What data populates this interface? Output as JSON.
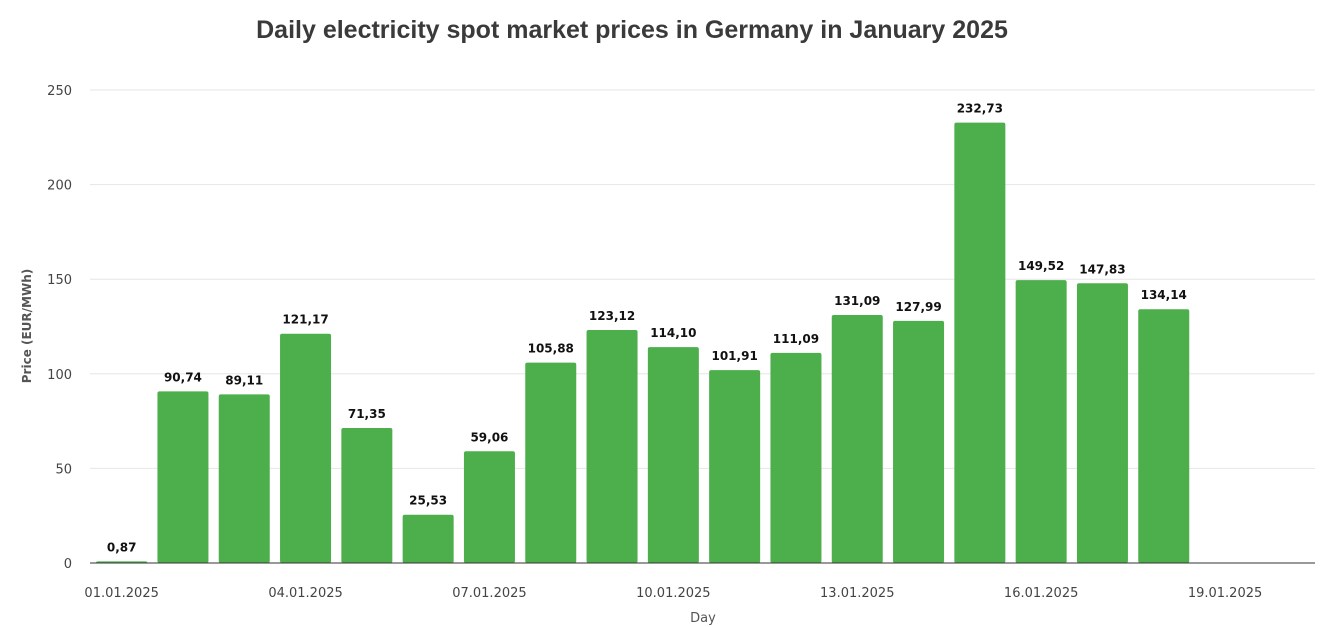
{
  "chart_data": {
    "type": "bar",
    "title": "Daily electricity spot market prices in Germany in January 2025",
    "xlabel": "Day",
    "ylabel": "Price (EUR/MWh)",
    "ylim": [
      0,
      250
    ],
    "yticks": [
      0,
      50,
      100,
      150,
      200,
      250
    ],
    "grid": true,
    "bar_color": "#4caf4c",
    "x_range": [
      "01.01.2025",
      "20.01.2025"
    ],
    "xticks": [
      "01.01.2025",
      "04.01.2025",
      "07.01.2025",
      "10.01.2025",
      "13.01.2025",
      "16.01.2025",
      "19.01.2025"
    ],
    "categories": [
      "01.01.2025",
      "02.01.2025",
      "03.01.2025",
      "04.01.2025",
      "05.01.2025",
      "06.01.2025",
      "07.01.2025",
      "08.01.2025",
      "09.01.2025",
      "10.01.2025",
      "11.01.2025",
      "12.01.2025",
      "13.01.2025",
      "14.01.2025",
      "15.01.2025",
      "16.01.2025",
      "17.01.2025",
      "18.01.2025"
    ],
    "values": [
      0.87,
      90.74,
      89.11,
      121.17,
      71.35,
      25.53,
      59.06,
      105.88,
      123.12,
      114.1,
      101.91,
      111.09,
      131.09,
      127.99,
      232.73,
      149.52,
      147.83,
      134.14
    ],
    "value_labels": [
      "0,87",
      "90,74",
      "89,11",
      "121,17",
      "71,35",
      "25,53",
      "59,06",
      "105,88",
      "123,12",
      "114,10",
      "101,91",
      "111,09",
      "131,09",
      "127,99",
      "232,73",
      "149,52",
      "147,83",
      "134,14"
    ]
  }
}
